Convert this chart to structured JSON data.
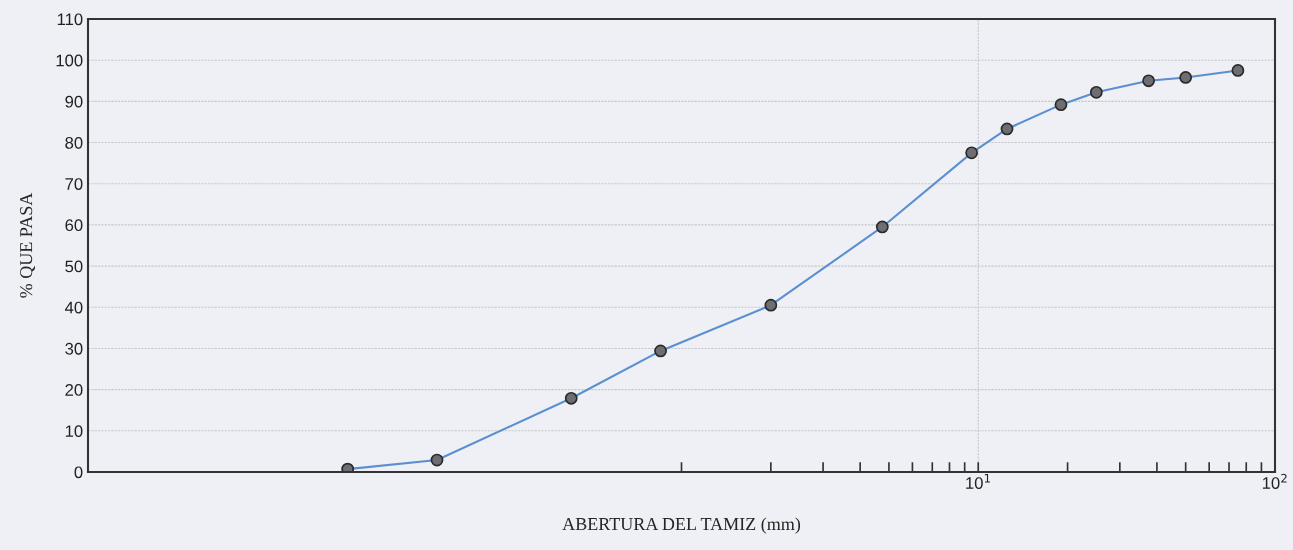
{
  "chart_data": {
    "type": "line",
    "xlabel": "ABERTURA DEL TAMIZ (mm)",
    "ylabel": "% QUE PASA",
    "x": [
      0.075,
      0.15,
      0.425,
      0.85,
      2,
      4.75,
      9.5,
      12.5,
      19,
      25,
      37.5,
      50,
      75
    ],
    "series": [
      {
        "color": "#5b8fd0",
        "values": [
          0.7,
          2.9,
          17.9,
          29.4,
          40.5,
          59.5,
          77.5,
          83.3,
          89.2,
          92.2,
          95,
          95.8,
          97.5
        ]
      }
    ],
    "log": "x",
    "xlim": [
      0.01,
      100
    ],
    "xticks": [
      {
        "value": 1,
        "label": null
      },
      {
        "value": 2,
        "label": null
      },
      {
        "value": 3,
        "label": null
      },
      {
        "value": 4,
        "label": null
      },
      {
        "value": 5,
        "label": null
      },
      {
        "value": 6,
        "label": null
      },
      {
        "value": 7,
        "label": null
      },
      {
        "value": 8,
        "label": null
      },
      {
        "value": 9,
        "label": null
      },
      {
        "value": 10,
        "label": "10$^{1}$"
      },
      {
        "value": 20,
        "label": null
      },
      {
        "value": 30,
        "label": null
      },
      {
        "value": 40,
        "label": null
      },
      {
        "value": 50,
        "label": null
      },
      {
        "value": 60,
        "label": null
      },
      {
        "value": 70,
        "label": null
      },
      {
        "value": 80,
        "label": null
      },
      {
        "value": 90,
        "label": null
      },
      {
        "value": 100,
        "label": "10$^{2}$"
      }
    ],
    "ylim": [
      0,
      110
    ],
    "yticks": [
      0,
      10,
      20,
      30,
      40,
      50,
      60,
      70,
      80,
      90,
      100,
      110
    ],
    "grid": true,
    "marker": "circle",
    "line_style": "solid",
    "legend": false
  }
}
